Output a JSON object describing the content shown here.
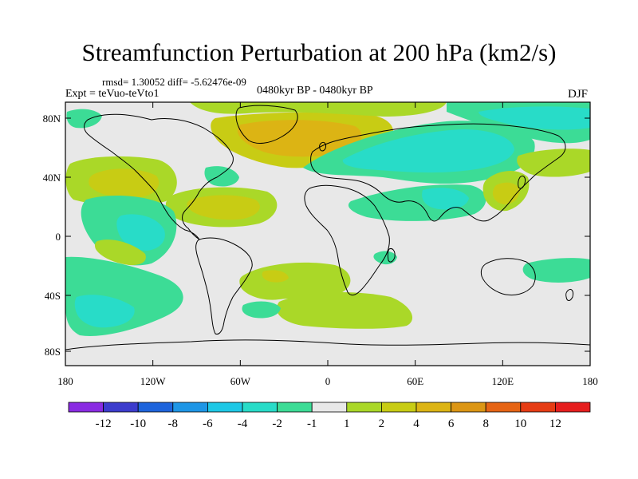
{
  "title": "Streamfunction Perturbation at 200 hPa (km2/s)",
  "stats": "rmsd= 1.30052 diff= -5.62476e-09",
  "experiment": "Expt = teVuo-teVto1",
  "period": "0480kyr BP - 0480kyr BP",
  "season": "DJF",
  "lat_ticks": [
    "80N",
    "40N",
    "0",
    "40S",
    "80S"
  ],
  "lon_ticks": [
    "180",
    "120W",
    "60W",
    "0",
    "60E",
    "120E",
    "180"
  ],
  "colorbar": {
    "colors": [
      "#8a2be2",
      "#3c3ccd",
      "#1e64dc",
      "#1e96e6",
      "#1ec8e6",
      "#28dcc8",
      "#3cdc96",
      "#e8e8e8",
      "#aad828",
      "#c8cc14",
      "#dcb414",
      "#dc9614",
      "#e66414",
      "#e63c14",
      "#e61e1e"
    ],
    "labels": [
      "-12",
      "-10",
      "-8",
      "-6",
      "-4",
      "-2",
      "-1",
      "1",
      "2",
      "4",
      "6",
      "8",
      "10",
      "12"
    ]
  }
}
